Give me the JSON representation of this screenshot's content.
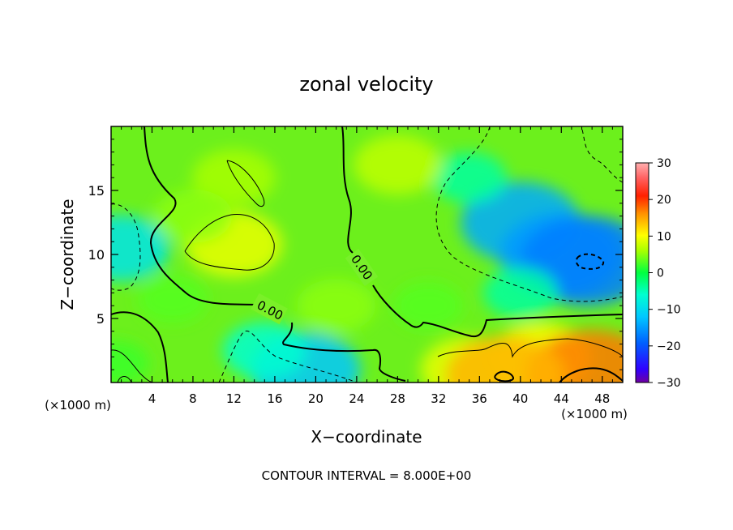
{
  "chart_data": {
    "type": "heatmap",
    "title": "zonal velocity",
    "xlabel": "X−coordinate",
    "ylabel": "Z−coordinate",
    "x_unit_label": "(×1000 m)",
    "x_unit_label_right": "(×1000 m)",
    "xlim": [
      0,
      50
    ],
    "ylim": [
      0,
      20
    ],
    "x_ticks": [
      4,
      8,
      12,
      16,
      20,
      24,
      28,
      32,
      36,
      40,
      44,
      48
    ],
    "x_tick_labels": [
      "4",
      "8",
      "12",
      "16",
      "20",
      "24",
      "28",
      "32",
      "36",
      "40",
      "44",
      "48"
    ],
    "y_ticks": [
      5,
      10,
      15
    ],
    "y_tick_labels": [
      "5",
      "10",
      "15"
    ],
    "colorbar": {
      "min": -30,
      "max": 30,
      "ticks": [
        30,
        20,
        10,
        0,
        -10,
        -20,
        -30
      ],
      "tick_labels": [
        "30",
        "20",
        "10",
        "0",
        "−10",
        "−20",
        "−30"
      ],
      "colors": [
        "#7000a0",
        "#0000ff",
        "#00a0ff",
        "#00ffff",
        "#00ff60",
        "#a0ff00",
        "#ffff00",
        "#ff8000",
        "#ff0000",
        "#ffa0a0"
      ]
    },
    "contour_interval_text": "CONTOUR INTERVAL = 8.000E+00",
    "contour_label": "0.00",
    "features": [
      {
        "x": 12,
        "z": 10.8,
        "value": 9
      },
      {
        "x": 12,
        "z": 16,
        "value": 6
      },
      {
        "x": 19,
        "z": 1,
        "value": -12
      },
      {
        "x": 15,
        "z": 2.5,
        "value": -6
      },
      {
        "x": 1,
        "z": 10.5,
        "value": -9
      },
      {
        "x": 0.5,
        "z": 1.5,
        "value": 2
      },
      {
        "x": 40,
        "z": 12.5,
        "value": -14
      },
      {
        "x": 44,
        "z": 10,
        "value": -15
      },
      {
        "x": 46.5,
        "z": 9.5,
        "value": -17
      },
      {
        "x": 35,
        "z": 16,
        "value": -4
      },
      {
        "x": 40,
        "z": 7,
        "value": -4
      },
      {
        "x": 42,
        "z": 2,
        "value": 10
      },
      {
        "x": 47,
        "z": 0.6,
        "value": 17
      },
      {
        "x": 35,
        "z": 1,
        "value": 9
      },
      {
        "x": 38.5,
        "z": 0.5,
        "value": 14
      },
      {
        "x": 22,
        "z": 6,
        "value": 5
      },
      {
        "x": 28,
        "z": 17,
        "value": 7
      },
      {
        "x": 31,
        "z": 6,
        "value": 3
      },
      {
        "x": 6,
        "z": 6.5,
        "value": 3
      },
      {
        "x": 8,
        "z": 13,
        "value": 5
      }
    ]
  }
}
